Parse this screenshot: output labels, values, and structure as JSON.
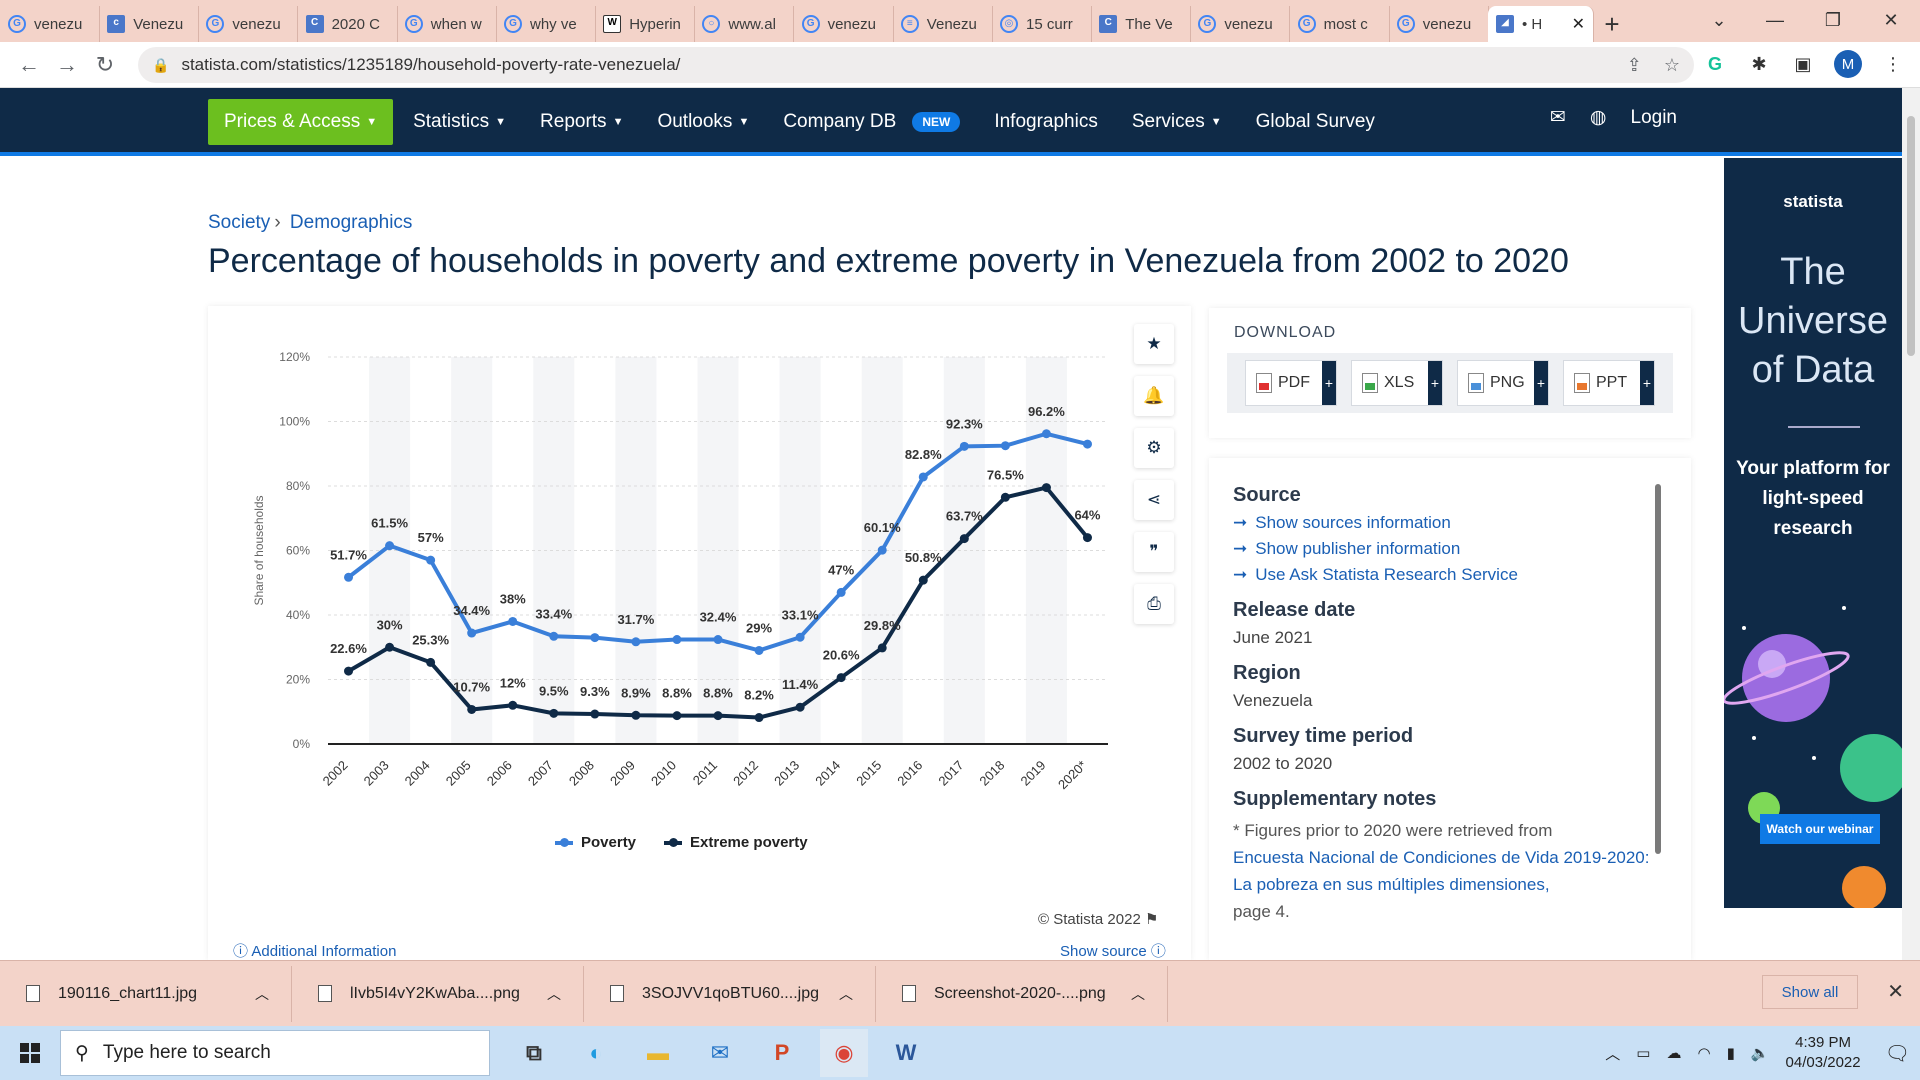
{
  "browser": {
    "tabs": [
      {
        "icon": "G",
        "label": "venezu"
      },
      {
        "icon": "cfr",
        "label": "Venezu"
      },
      {
        "icon": "G",
        "label": "venezu"
      },
      {
        "icon": "C",
        "label": "2020 C"
      },
      {
        "icon": "G",
        "label": "when w"
      },
      {
        "icon": "G",
        "label": "why ve"
      },
      {
        "icon": "W",
        "label": "Hyperin"
      },
      {
        "icon": "○",
        "label": "www.al"
      },
      {
        "icon": "G",
        "label": "venezu"
      },
      {
        "icon": "≡",
        "label": "Venezu"
      },
      {
        "icon": "◎",
        "label": "15 curr"
      },
      {
        "icon": "CSIS",
        "label": "The Ve"
      },
      {
        "icon": "G",
        "label": "venezu"
      },
      {
        "icon": "G",
        "label": "most c"
      },
      {
        "icon": "G",
        "label": "venezu"
      }
    ],
    "active_tab": {
      "label": "• H"
    },
    "url": "statista.com/statistics/1235189/household-poverty-rate-venezuela/",
    "avatar_initial": "M"
  },
  "site_nav": {
    "prices": "Prices & Access",
    "statistics": "Statistics",
    "reports": "Reports",
    "outlooks": "Outlooks",
    "company_db": "Company DB",
    "new_badge": "NEW",
    "infographics": "Infographics",
    "services": "Services",
    "global_survey": "Global Survey",
    "login": "Login"
  },
  "breadcrumb": {
    "society": "Society",
    "demographics": "Demographics"
  },
  "page_title": "Percentage of households in poverty and extreme poverty in Venezuela from 2002 to 2020",
  "chart_data": {
    "type": "line",
    "ylabel": "Share of households",
    "ylim": [
      0,
      120
    ],
    "yticks": [
      "0%",
      "20%",
      "40%",
      "60%",
      "80%",
      "100%",
      "120%"
    ],
    "categories": [
      "2002",
      "2003",
      "2004",
      "2005",
      "2006",
      "2007",
      "2008",
      "2009",
      "2010",
      "2011",
      "2012",
      "2013",
      "2014",
      "2015",
      "2016",
      "2017",
      "2018",
      "2019",
      "2020*"
    ],
    "series": [
      {
        "name": "Poverty",
        "color": "#3a7fd9",
        "values": [
          51.7,
          61.5,
          57,
          34.4,
          38,
          33.4,
          33,
          31.7,
          32.4,
          32.4,
          29,
          33.1,
          47,
          60.1,
          82.8,
          92.3,
          92.5,
          96.2,
          93
        ],
        "labels": [
          "51.7%",
          "61.5%",
          "57%",
          "34.4%",
          "38%",
          "33.4%",
          "",
          "31.7%",
          "",
          "32.4%",
          "29%",
          "33.1%",
          "47%",
          "60.1%",
          "82.8%",
          "92.3%",
          "",
          "96.2%",
          ""
        ]
      },
      {
        "name": "Extreme poverty",
        "color": "#0f2a47",
        "values": [
          22.6,
          30,
          25.3,
          10.7,
          12,
          9.5,
          9.3,
          8.9,
          8.8,
          8.8,
          8.2,
          11.4,
          20.6,
          29.8,
          50.8,
          63.7,
          76.5,
          79.5,
          64
        ],
        "labels": [
          "22.6%",
          "30%",
          "25.3%",
          "10.7%",
          "12%",
          "9.5%",
          "9.3%",
          "8.9%",
          "8.8%",
          "8.8%",
          "8.2%",
          "11.4%",
          "20.6%",
          "29.8%",
          "50.8%",
          "63.7%",
          "76.5%",
          "",
          "64%"
        ]
      }
    ]
  },
  "chart_footer": {
    "copyright": "© Statista 2022",
    "additional_info": "Additional Information",
    "show_source": "Show source"
  },
  "download": {
    "title": "DOWNLOAD",
    "formats": [
      {
        "label": "PDF",
        "color": "#e03030"
      },
      {
        "label": "XLS",
        "color": "#3aa84a"
      },
      {
        "label": "PNG",
        "color": "#4a90d9"
      },
      {
        "label": "PPT",
        "color": "#e8772e"
      }
    ]
  },
  "info": {
    "source_h": "Source",
    "links": [
      "Show sources information",
      "Show publisher information",
      "Use Ask Statista Research Service"
    ],
    "release_h": "Release date",
    "release_v": "June 2021",
    "region_h": "Region",
    "region_v": "Venezuela",
    "survey_h": "Survey time period",
    "survey_v": "2002 to 2020",
    "notes_h": "Supplementary notes",
    "notes_text": "* Figures prior to 2020 were retrieved from",
    "notes_link": "Encuesta Nacional de Condiciones de Vida 2019-2020: La pobreza en sus múltiples dimensiones,",
    "notes_page": "page 4."
  },
  "ad": {
    "logo": "statista",
    "headline": "The Universe of Data",
    "sub": "Your platform for light-speed research",
    "cta": "Watch our webinar"
  },
  "downloads_shelf": {
    "items": [
      "190116_chart11.jpg",
      "lIvb5I4vY2KwAba....png",
      "3SOJVV1qoBTU60....jpg",
      "Screenshot-2020-....png"
    ],
    "show_all": "Show all"
  },
  "taskbar": {
    "search_placeholder": "Type here to search",
    "time": "4:39 PM",
    "date": "04/03/2022"
  }
}
